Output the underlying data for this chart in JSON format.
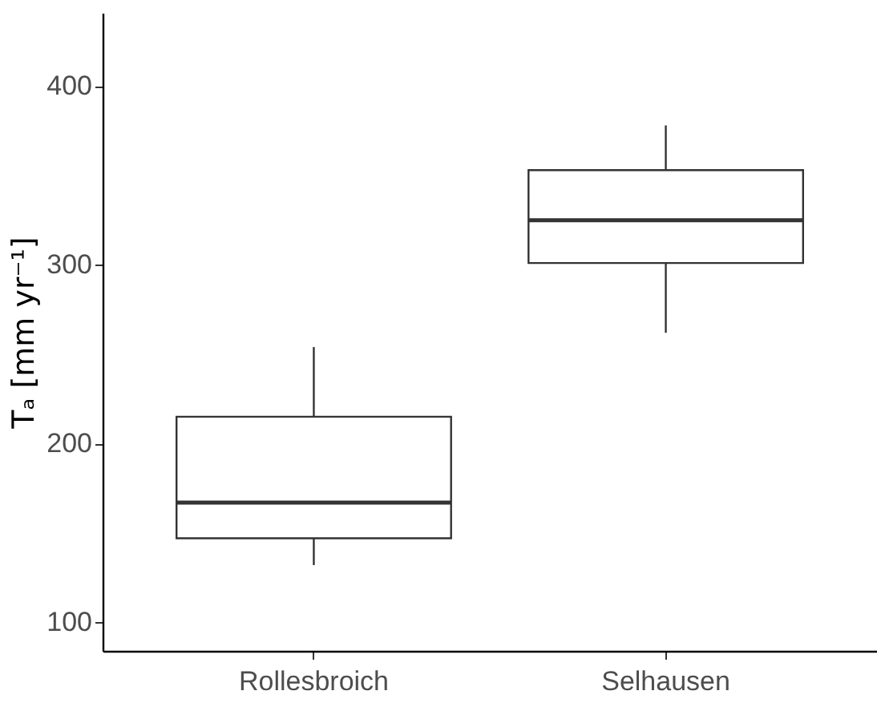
{
  "chart_data": {
    "type": "box",
    "categories": [
      "Rollesbroich",
      "Selhausen"
    ],
    "ylabel": "Tₐ [mm yr⁻¹]",
    "boxes": [
      {
        "low": 132,
        "q1": 147,
        "median": 167,
        "q3": 215,
        "high": 254
      },
      {
        "low": 262,
        "q1": 301,
        "median": 325,
        "q3": 353,
        "high": 378
      }
    ],
    "color": "#333333",
    "ylim": [
      84,
      441
    ],
    "yticks": [
      100,
      200,
      300,
      400
    ],
    "grid": false
  }
}
